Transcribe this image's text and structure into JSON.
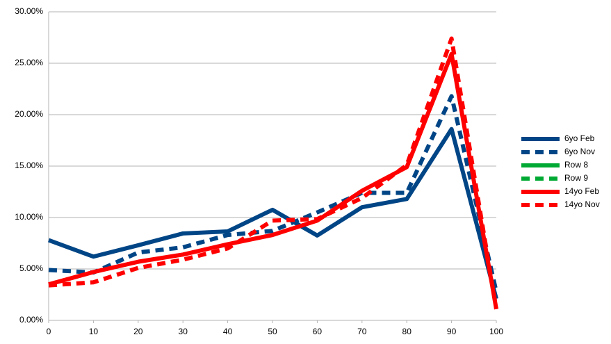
{
  "chart_data": {
    "type": "line",
    "x": [
      0,
      10,
      20,
      30,
      40,
      50,
      60,
      70,
      80,
      90,
      100
    ],
    "xlim": [
      0,
      100
    ],
    "xticks": [
      0,
      10,
      20,
      30,
      40,
      50,
      60,
      70,
      80,
      90,
      100
    ],
    "ylim": [
      0,
      30
    ],
    "yticks": [
      {
        "value": 0,
        "label": "0.00%"
      },
      {
        "value": 5,
        "label": "5.00%"
      },
      {
        "value": 10,
        "label": "10.00%"
      },
      {
        "value": 15,
        "label": "15.00%"
      },
      {
        "value": 20,
        "label": "20.00%"
      },
      {
        "value": 25,
        "label": "25.00%"
      },
      {
        "value": 30,
        "label": "30.00%"
      }
    ],
    "grid": true,
    "legend": "right",
    "series": [
      {
        "name": "6yo Feb",
        "color": "#004586",
        "dashed": false,
        "values": [
          7.8,
          6.2,
          7.3,
          8.45,
          8.65,
          10.75,
          8.25,
          11.0,
          11.8,
          18.6,
          2.1
        ]
      },
      {
        "name": "6yo Nov",
        "color": "#004586",
        "dashed": true,
        "values": [
          4.9,
          4.65,
          6.6,
          7.1,
          8.3,
          8.7,
          10.5,
          12.4,
          12.4,
          21.8,
          2.8
        ]
      },
      {
        "name": "Row 8",
        "color": "#00a933",
        "dashed": false,
        "values": [
          null,
          null,
          null,
          null,
          null,
          null,
          null,
          null,
          null,
          null,
          null
        ]
      },
      {
        "name": "Row 9",
        "color": "#00a933",
        "dashed": true,
        "values": [
          null,
          null,
          null,
          null,
          null,
          null,
          null,
          null,
          null,
          null,
          null
        ]
      },
      {
        "name": "14yo Feb",
        "color": "#ff0000",
        "dashed": false,
        "values": [
          3.5,
          4.7,
          5.7,
          6.4,
          7.4,
          8.3,
          9.7,
          12.6,
          14.9,
          25.9,
          1.1
        ]
      },
      {
        "name": "14yo Nov",
        "color": "#ff0000",
        "dashed": true,
        "values": [
          3.4,
          3.7,
          5.1,
          5.9,
          7.0,
          9.7,
          9.85,
          11.9,
          15.1,
          27.4,
          1.1
        ]
      }
    ]
  }
}
